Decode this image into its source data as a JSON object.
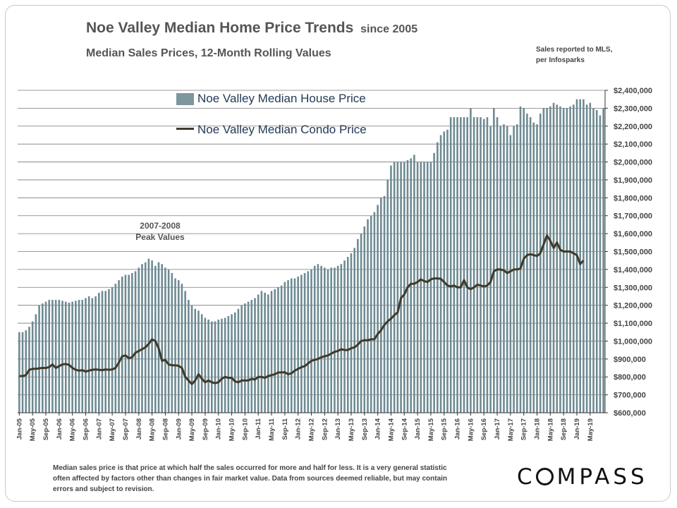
{
  "title": "Noe Valley Median Home Price Trends",
  "title_suffix": "since 2005",
  "subtitle": "Median Sales Prices, 12-Month Rolling Values",
  "source_note": [
    "Sales reported  to MLS,",
    "per Infosparks"
  ],
  "annotation": [
    "2007-2008",
    "Peak Values"
  ],
  "footnote": "Median sales price is that price at which half the sales occurred for more and half for less. It is a very general statistic often affected by factors other than changes in fair market value. Data from sources deemed reliable, but may contain errors and subject to revision.",
  "logo": {
    "text": "COMPASS",
    "before": "C",
    "after": "MPASS"
  },
  "colors": {
    "bar": "#6e8a92",
    "bar_light": "#a8bcc2",
    "line": "#3e3a2a",
    "grid": "#7a7a7a",
    "text": "#555555",
    "legend_text": "#233a56"
  },
  "chart_data": {
    "type": "bar+line",
    "title": "Noe Valley Median Home Price Trends since 2005",
    "ylim": [
      600000,
      2400000
    ],
    "ytick_step": 100000,
    "ytick_labels": [
      "$600,000",
      "$700,000",
      "$800,000",
      "$900,000",
      "$1,000,000",
      "$1,100,000",
      "$1,200,000",
      "$1,300,000",
      "$1,400,000",
      "$1,500,000",
      "$1,600,000",
      "$1,700,000",
      "$1,800,000",
      "$1,900,000",
      "$2,000,000",
      "$2,100,000",
      "$2,200,000",
      "$2,300,000",
      "$2,400,000"
    ],
    "xtick_labels": [
      "Jan-05",
      "May-05",
      "Sep-05",
      "Jan-06",
      "May-06",
      "Sep-06",
      "Jan-07",
      "May-07",
      "Sep-07",
      "Jan-08",
      "May-08",
      "Sep-08",
      "Jan-09",
      "May-09",
      "Sep-09",
      "Jan-10",
      "May-10",
      "Sep-10",
      "Jan-11",
      "May-11",
      "Sep-11",
      "Jan-12",
      "May-12",
      "Sep-12",
      "Jan-13",
      "May-13",
      "Sep-13",
      "Jan-14",
      "May-14",
      "Sep-14",
      "Jan-15",
      "May-15",
      "Sep-15",
      "Jan-16",
      "May-16",
      "Sep-16",
      "Jan-17",
      "May-17",
      "Sep-17",
      "Jan-18",
      "May-18",
      "Sep-18",
      "Jan-19",
      "May-19"
    ],
    "period": "monthly, Jan-05 to May-19",
    "series": [
      {
        "name": "Noe Valley Median House Price",
        "kind": "bar",
        "values": [
          1050000,
          1050000,
          1060000,
          1080000,
          1110000,
          1150000,
          1200000,
          1210000,
          1220000,
          1230000,
          1230000,
          1230000,
          1230000,
          1225000,
          1220000,
          1215000,
          1220000,
          1225000,
          1230000,
          1230000,
          1240000,
          1250000,
          1240000,
          1250000,
          1270000,
          1280000,
          1280000,
          1290000,
          1300000,
          1320000,
          1340000,
          1360000,
          1370000,
          1370000,
          1380000,
          1390000,
          1410000,
          1430000,
          1440000,
          1460000,
          1450000,
          1420000,
          1440000,
          1430000,
          1410000,
          1400000,
          1380000,
          1350000,
          1340000,
          1320000,
          1280000,
          1230000,
          1200000,
          1180000,
          1170000,
          1150000,
          1130000,
          1120000,
          1110000,
          1110000,
          1120000,
          1125000,
          1130000,
          1140000,
          1150000,
          1160000,
          1180000,
          1200000,
          1210000,
          1220000,
          1230000,
          1240000,
          1260000,
          1280000,
          1270000,
          1260000,
          1280000,
          1290000,
          1300000,
          1310000,
          1330000,
          1340000,
          1350000,
          1350000,
          1360000,
          1370000,
          1380000,
          1390000,
          1400000,
          1420000,
          1430000,
          1420000,
          1410000,
          1400000,
          1410000,
          1410000,
          1420000,
          1430000,
          1450000,
          1470000,
          1490000,
          1520000,
          1570000,
          1600000,
          1640000,
          1680000,
          1700000,
          1720000,
          1760000,
          1800000,
          1810000,
          1900000,
          1980000,
          2000000,
          2000000,
          2000000,
          2000000,
          2010000,
          2020000,
          2040000,
          2000000,
          2000000,
          2000000,
          2000000,
          2000000,
          2050000,
          2110000,
          2150000,
          2170000,
          2180000,
          2250000,
          2250000,
          2250000,
          2250000,
          2250000,
          2250000,
          2300000,
          2250000,
          2250000,
          2250000,
          2240000,
          2250000,
          2200000,
          2300000,
          2250000,
          2200000,
          2210000,
          2200000,
          2150000,
          2200000,
          2210000,
          2310000,
          2300000,
          2270000,
          2250000,
          2220000,
          2210000,
          2270000,
          2300000,
          2300000,
          2310000,
          2330000,
          2320000,
          2310000,
          2300000,
          2300000,
          2310000,
          2320000,
          2350000,
          2350000,
          2350000,
          2320000,
          2330000,
          2300000,
          2290000,
          2260000,
          2300000
        ]
      },
      {
        "name": "Noe Valley Median Condo Price",
        "kind": "line",
        "values": [
          805000,
          805000,
          810000,
          840000,
          845000,
          845000,
          848000,
          850000,
          850000,
          855000,
          870000,
          850000,
          860000,
          870000,
          872000,
          868000,
          850000,
          840000,
          835000,
          838000,
          830000,
          835000,
          840000,
          842000,
          840000,
          838000,
          842000,
          840000,
          842000,
          850000,
          880000,
          915000,
          920000,
          905000,
          910000,
          935000,
          945000,
          955000,
          965000,
          985000,
          1010000,
          1000000,
          960000,
          890000,
          895000,
          870000,
          865000,
          865000,
          862000,
          850000,
          800000,
          780000,
          760000,
          780000,
          815000,
          790000,
          770000,
          780000,
          770000,
          765000,
          770000,
          790000,
          800000,
          795000,
          795000,
          775000,
          770000,
          780000,
          780000,
          780000,
          790000,
          785000,
          800000,
          800000,
          795000,
          805000,
          810000,
          815000,
          825000,
          825000,
          826000,
          815000,
          820000,
          835000,
          845000,
          855000,
          860000,
          875000,
          890000,
          895000,
          900000,
          910000,
          915000,
          920000,
          930000,
          940000,
          945000,
          955000,
          950000,
          950000,
          960000,
          965000,
          980000,
          1000000,
          1005000,
          1005000,
          1010000,
          1010000,
          1040000,
          1060000,
          1090000,
          1110000,
          1125000,
          1145000,
          1160000,
          1240000,
          1260000,
          1300000,
          1320000,
          1320000,
          1330000,
          1345000,
          1335000,
          1330000,
          1345000,
          1350000,
          1350000,
          1348000,
          1330000,
          1310000,
          1305000,
          1310000,
          1300000,
          1300000,
          1340000,
          1300000,
          1290000,
          1300000,
          1315000,
          1310000,
          1305000,
          1310000,
          1330000,
          1390000,
          1400000,
          1400000,
          1395000,
          1380000,
          1390000,
          1400000,
          1400000,
          1405000,
          1460000,
          1480000,
          1485000,
          1480000,
          1475000,
          1490000,
          1540000,
          1590000,
          1560000,
          1520000,
          1550000,
          1510000,
          1500000,
          1500000,
          1500000,
          1490000,
          1480000,
          1430000,
          1450000
        ]
      }
    ]
  }
}
